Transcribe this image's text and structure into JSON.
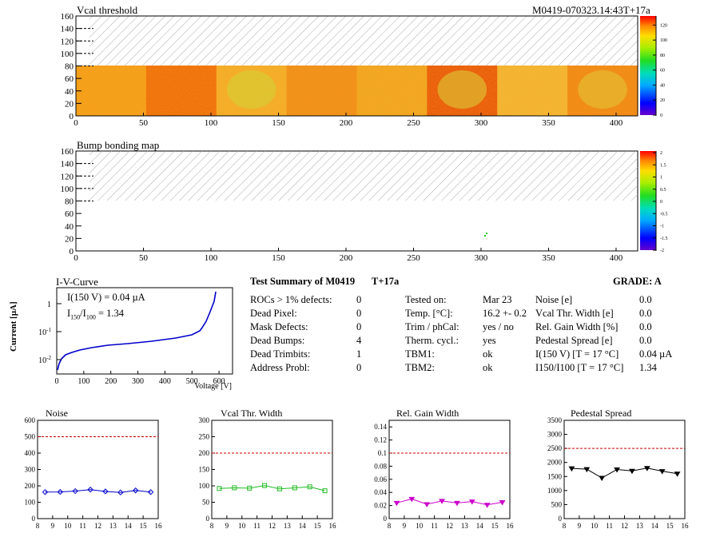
{
  "header": {
    "vcal_title": "Vcal threshold",
    "module_id": "M0419-070323.14:43T+17a",
    "bump_title": "Bump bonding map"
  },
  "maps": {
    "x_ticks": [
      "0",
      "50",
      "100",
      "150",
      "200",
      "250",
      "300",
      "350",
      "400"
    ],
    "y_ticks": [
      "0",
      "20",
      "40",
      "60",
      "80",
      "100",
      "120",
      "140",
      "160"
    ],
    "vcal_colorbar_ticks": [
      "0",
      "20",
      "40",
      "60",
      "80",
      "100",
      "120"
    ],
    "bump_colorbar_ticks": [
      "-2",
      "-1.5",
      "-1",
      "-0.5",
      "0",
      "0.5",
      "1",
      "1.5",
      "2"
    ]
  },
  "iv": {
    "title": "I-V-Curve",
    "ylabel": "Current [µA]",
    "xlabel": "Voltage [V]",
    "annot1": "I(150 V) = 0.04 µA",
    "annot2_main": "I",
    "annot2_sub1": "150",
    "annot2_mid": "/I",
    "annot2_sub2": "100",
    "annot2_val": "=  1.34",
    "x_ticks": [
      "0",
      "100",
      "200",
      "300",
      "400",
      "500",
      "600"
    ],
    "y_ticks": [
      "1",
      "10",
      "10"
    ],
    "y_exps": [
      "",
      "-1",
      "-2"
    ]
  },
  "summary": {
    "title": "Test Summary of M0419",
    "tag": "T+17a",
    "grade": "GRADE:  A",
    "col1_labels": [
      "ROCs > 1% defects:",
      "Dead Pixel:",
      "Mask Defects:",
      "Dead Bumps:",
      "Dead Trimbits:",
      "Address Probl:"
    ],
    "col1_values": [
      "0",
      "0",
      "0",
      "4",
      "1",
      "0"
    ],
    "col2_labels": [
      "Tested on:",
      "Temp. [°C]:",
      "Trim / phCal:",
      "Therm. cycl.:",
      "TBM1:",
      "TBM2:"
    ],
    "col2_values": [
      "Mar 23",
      "16.2 +- 0.2",
      "yes / no",
      "yes",
      "ok",
      "ok"
    ],
    "col3_labels": [
      "Noise [e]",
      "Vcal Thr. Width [e]",
      "Rel. Gain Width [%]",
      "Pedestal Spread [e]",
      "I(150 V) [T = 17 °C]",
      "I150/I100  [T = 17 °C]"
    ],
    "col3_values": [
      "0.0",
      "0.0",
      "0.0",
      "0.0",
      "0.04 µA",
      "1.34"
    ]
  },
  "chart_data": [
    {
      "type": "line",
      "title": "Noise",
      "x": [
        8.5,
        9.5,
        10.5,
        11.5,
        12.5,
        13.5,
        14.5,
        15.5
      ],
      "values": [
        162,
        163,
        168,
        177,
        166,
        160,
        172,
        162
      ],
      "xlim": [
        8,
        16
      ],
      "ylim": [
        0,
        600
      ],
      "x_ticks": [
        8,
        9,
        10,
        11,
        12,
        13,
        14,
        15,
        16
      ],
      "y_ticks": [
        0,
        100,
        200,
        300,
        400,
        500,
        600
      ],
      "threshold": 500,
      "color": "#0000cc",
      "marker": "diamond"
    },
    {
      "type": "line",
      "title": "Vcal Thr. Width",
      "x": [
        8.5,
        9.5,
        10.5,
        11.5,
        12.5,
        13.5,
        14.5,
        15.5
      ],
      "values": [
        92,
        94,
        93,
        101,
        91,
        94,
        97,
        85
      ],
      "xlim": [
        8,
        16
      ],
      "ylim": [
        0,
        300
      ],
      "x_ticks": [
        8,
        9,
        10,
        11,
        12,
        13,
        14,
        15,
        16
      ],
      "y_ticks": [
        0,
        50,
        100,
        150,
        200,
        250,
        300
      ],
      "threshold": 200,
      "color": "#22bb22",
      "marker": "square"
    },
    {
      "type": "line",
      "title": "Rel. Gain Width",
      "x": [
        8.5,
        9.5,
        10.5,
        11.5,
        12.5,
        13.5,
        14.5,
        15.5
      ],
      "values": [
        0.024,
        0.03,
        0.022,
        0.027,
        0.024,
        0.026,
        0.021,
        0.025
      ],
      "xlim": [
        8,
        16
      ],
      "ylim": [
        0,
        0.15
      ],
      "x_ticks": [
        8,
        9,
        10,
        11,
        12,
        13,
        14,
        15,
        16
      ],
      "y_ticks": [
        0,
        0.02,
        0.04,
        0.06,
        0.08,
        0.1,
        0.12,
        0.14
      ],
      "threshold": 0.1,
      "color": "#cc00cc",
      "marker": "triangle-down"
    },
    {
      "type": "line",
      "title": "Pedestal Spread",
      "x": [
        8.5,
        9.5,
        10.5,
        11.5,
        12.5,
        13.5,
        14.5,
        15.5
      ],
      "values": [
        1790,
        1760,
        1450,
        1750,
        1700,
        1800,
        1690,
        1600
      ],
      "xlim": [
        8,
        16
      ],
      "ylim": [
        0,
        3500
      ],
      "x_ticks": [
        8,
        9,
        10,
        11,
        12,
        13,
        14,
        15,
        16
      ],
      "y_ticks": [
        0,
        500,
        1000,
        1500,
        2000,
        2500,
        3000,
        3500
      ],
      "threshold": 2500,
      "color": "#000000",
      "marker": "triangle-down"
    }
  ]
}
